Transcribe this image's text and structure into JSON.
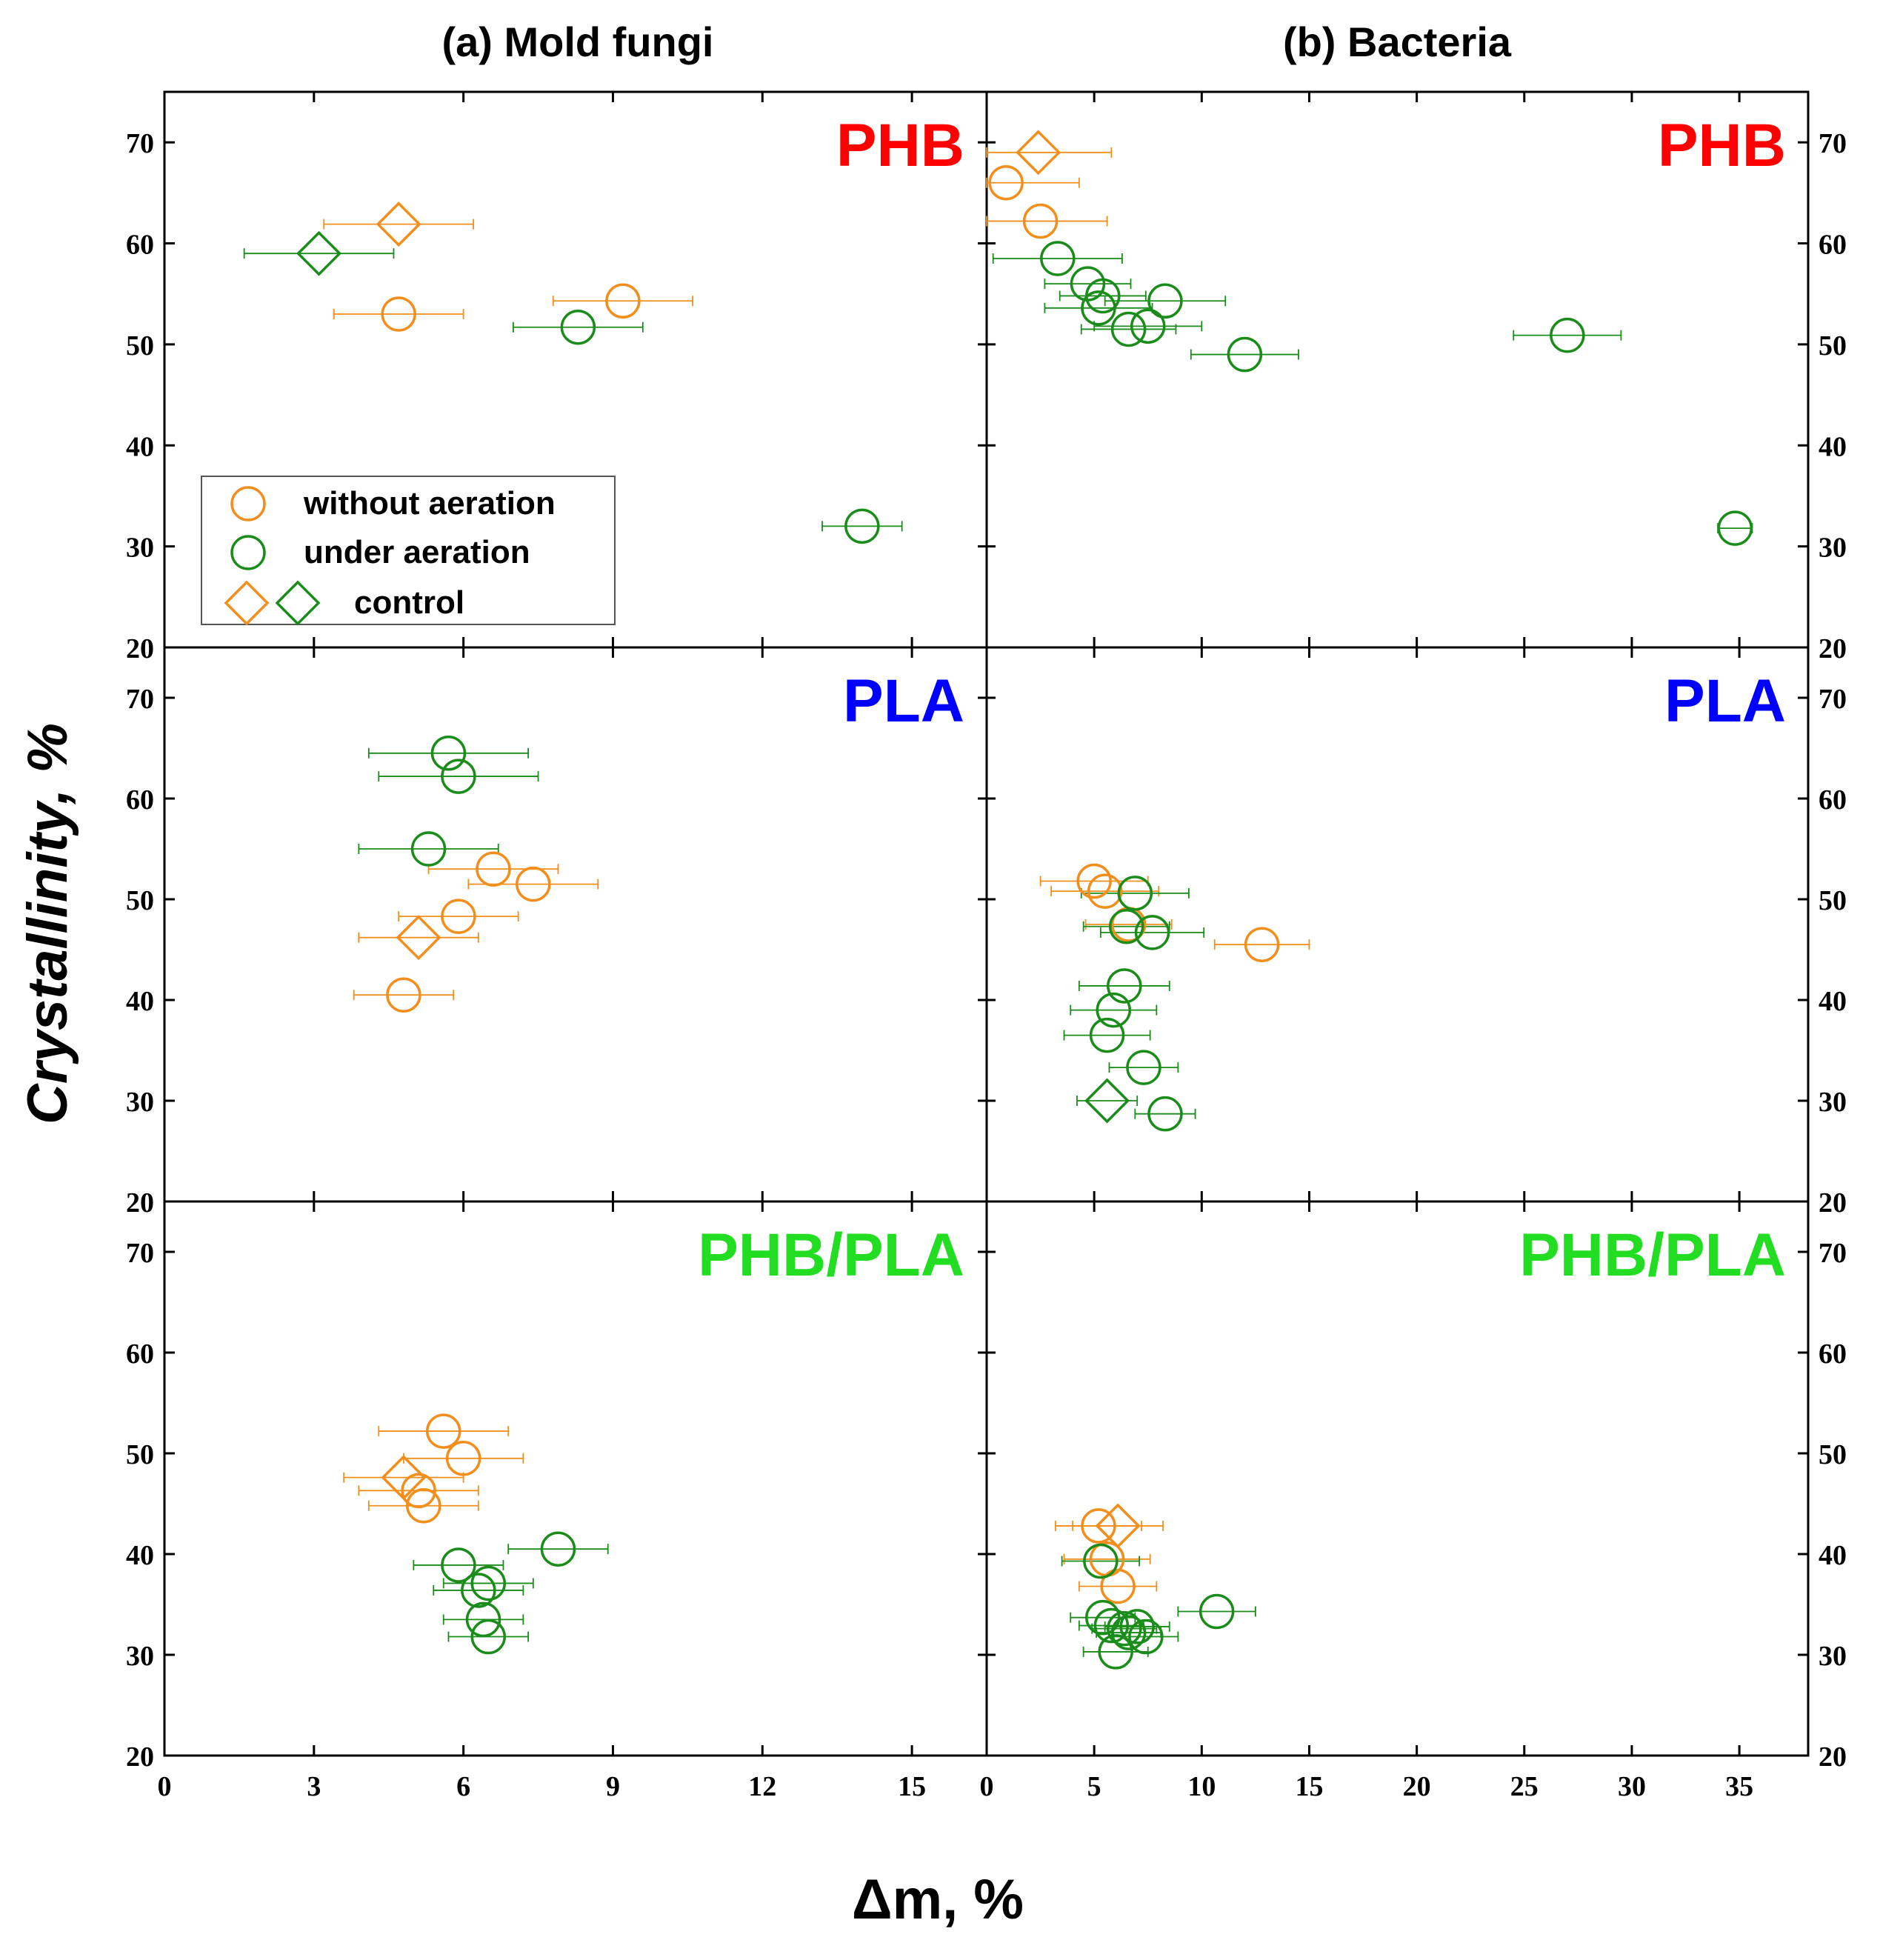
{
  "colors": {
    "without_aeration": "#f28e1c",
    "under_aeration": "#1a8c1a",
    "label_phb": "#ff0000",
    "label_pla": "#0000ff",
    "label_blend": "#22dd22",
    "axis": "#000000"
  },
  "chart_data": {
    "type": "scatter",
    "xlabel": "Δm, %",
    "ylabel": "Crystallinity, %",
    "column_titles": [
      "(a) Mold fungi",
      "(b) Bacteria"
    ],
    "row_labels": [
      "PHB",
      "PLA",
      "PHB/PLA"
    ],
    "ylim": [
      20,
      75
    ],
    "yticks": [
      20,
      30,
      40,
      50,
      60,
      70
    ],
    "columns": [
      {
        "xlim": [
          0,
          16.5
        ],
        "xticks": [
          0,
          3,
          6,
          9,
          12,
          15
        ]
      },
      {
        "xlim": [
          0,
          38.2
        ],
        "xticks": [
          0,
          5,
          10,
          15,
          20,
          25,
          30,
          35
        ]
      }
    ],
    "legend": {
      "location": "lower-left of top-left panel",
      "entries": [
        "without aeration",
        "under aeration",
        "control"
      ]
    },
    "panels": [
      {
        "column": "(a) Mold fungi",
        "material": "PHB",
        "without_aeration": [
          {
            "x": 4.7,
            "y": 53.0,
            "xerr": 1.3
          },
          {
            "x": 9.2,
            "y": 54.3,
            "xerr": 1.4
          }
        ],
        "under_aeration": [
          {
            "x": 8.3,
            "y": 51.7,
            "xerr": 1.3
          },
          {
            "x": 14.0,
            "y": 32.0,
            "xerr": 0.8
          }
        ],
        "control_without_aeration": [
          {
            "x": 4.7,
            "y": 61.9,
            "xerr": 1.5
          }
        ],
        "control_under_aeration": [
          {
            "x": 3.1,
            "y": 59.0,
            "xerr": 1.5
          }
        ]
      },
      {
        "column": "(b) Bacteria",
        "material": "PHB",
        "without_aeration": [
          {
            "x": 0.9,
            "y": 66.0,
            "xerr": 3.4
          },
          {
            "x": 2.5,
            "y": 62.2,
            "xerr": 3.1
          }
        ],
        "under_aeration": [
          {
            "x": 3.3,
            "y": 58.5,
            "xerr": 3.0
          },
          {
            "x": 4.7,
            "y": 56.0,
            "xerr": 2.0
          },
          {
            "x": 5.4,
            "y": 54.8,
            "xerr": 2.0
          },
          {
            "x": 5.2,
            "y": 53.6,
            "xerr": 2.5
          },
          {
            "x": 8.3,
            "y": 54.3,
            "xerr": 2.8
          },
          {
            "x": 7.5,
            "y": 51.8,
            "xerr": 2.5
          },
          {
            "x": 6.6,
            "y": 51.5,
            "xerr": 2.2
          },
          {
            "x": 12.0,
            "y": 49.0,
            "xerr": 2.5
          },
          {
            "x": 27.0,
            "y": 50.9,
            "xerr": 2.5
          },
          {
            "x": 34.8,
            "y": 31.8,
            "xerr": 0.8
          }
        ],
        "control_without_aeration": [
          {
            "x": 2.4,
            "y": 69.0,
            "xerr": 3.4
          }
        ],
        "control_under_aeration": []
      },
      {
        "column": "(a) Mold fungi",
        "material": "PLA",
        "without_aeration": [
          {
            "x": 6.6,
            "y": 53.0,
            "xerr": 1.3
          },
          {
            "x": 7.4,
            "y": 51.5,
            "xerr": 1.3
          },
          {
            "x": 5.9,
            "y": 48.3,
            "xerr": 1.2
          },
          {
            "x": 4.8,
            "y": 40.5,
            "xerr": 1.0
          }
        ],
        "under_aeration": [
          {
            "x": 5.7,
            "y": 64.5,
            "xerr": 1.6
          },
          {
            "x": 5.9,
            "y": 62.2,
            "xerr": 1.6
          },
          {
            "x": 5.3,
            "y": 55.0,
            "xerr": 1.4
          }
        ],
        "control_without_aeration": [
          {
            "x": 5.1,
            "y": 46.2,
            "xerr": 1.2
          }
        ],
        "control_under_aeration": []
      },
      {
        "column": "(b) Bacteria",
        "material": "PLA",
        "without_aeration": [
          {
            "x": 5.0,
            "y": 51.8,
            "xerr": 2.5
          },
          {
            "x": 5.5,
            "y": 50.8,
            "xerr": 2.5
          },
          {
            "x": 6.6,
            "y": 47.5,
            "xerr": 2.0
          },
          {
            "x": 12.8,
            "y": 45.5,
            "xerr": 2.2
          }
        ],
        "under_aeration": [
          {
            "x": 6.9,
            "y": 50.6,
            "xerr": 2.5
          },
          {
            "x": 6.5,
            "y": 47.3,
            "xerr": 2.0
          },
          {
            "x": 7.7,
            "y": 46.7,
            "xerr": 2.4
          },
          {
            "x": 6.4,
            "y": 41.4,
            "xerr": 2.1
          },
          {
            "x": 5.9,
            "y": 39.0,
            "xerr": 2.0
          },
          {
            "x": 5.6,
            "y": 36.5,
            "xerr": 2.0
          },
          {
            "x": 7.3,
            "y": 33.3,
            "xerr": 1.6
          },
          {
            "x": 8.3,
            "y": 28.7,
            "xerr": 1.4
          }
        ],
        "control_without_aeration": [],
        "control_under_aeration": [
          {
            "x": 5.6,
            "y": 30.0,
            "xerr": 1.4
          }
        ]
      },
      {
        "column": "(a) Mold fungi",
        "material": "PHB/PLA",
        "without_aeration": [
          {
            "x": 5.6,
            "y": 52.2,
            "xerr": 1.3
          },
          {
            "x": 6.0,
            "y": 49.5,
            "xerr": 1.2
          },
          {
            "x": 5.1,
            "y": 46.3,
            "xerr": 1.2
          },
          {
            "x": 5.2,
            "y": 44.8,
            "xerr": 1.1
          }
        ],
        "under_aeration": [
          {
            "x": 7.9,
            "y": 40.5,
            "xerr": 1.0
          },
          {
            "x": 5.9,
            "y": 38.9,
            "xerr": 0.9
          },
          {
            "x": 6.5,
            "y": 37.1,
            "xerr": 0.9
          },
          {
            "x": 6.3,
            "y": 36.4,
            "xerr": 0.9
          },
          {
            "x": 6.4,
            "y": 33.5,
            "xerr": 0.8
          },
          {
            "x": 6.5,
            "y": 31.8,
            "xerr": 0.8
          }
        ],
        "control_without_aeration": [
          {
            "x": 4.8,
            "y": 47.6,
            "xerr": 1.2
          }
        ],
        "control_under_aeration": []
      },
      {
        "column": "(b) Bacteria",
        "material": "PHB/PLA",
        "without_aeration": [
          {
            "x": 5.2,
            "y": 42.8,
            "xerr": 2.0
          },
          {
            "x": 5.6,
            "y": 39.5,
            "xerr": 2.0
          },
          {
            "x": 6.1,
            "y": 36.8,
            "xerr": 1.8
          }
        ],
        "under_aeration": [
          {
            "x": 5.3,
            "y": 39.3,
            "xerr": 1.8
          },
          {
            "x": 10.7,
            "y": 34.3,
            "xerr": 1.8
          },
          {
            "x": 5.4,
            "y": 33.7,
            "xerr": 1.5
          },
          {
            "x": 5.8,
            "y": 32.9,
            "xerr": 1.5
          },
          {
            "x": 6.4,
            "y": 32.6,
            "xerr": 1.5
          },
          {
            "x": 7.0,
            "y": 32.8,
            "xerr": 1.5
          },
          {
            "x": 7.4,
            "y": 31.8,
            "xerr": 1.5
          },
          {
            "x": 6.6,
            "y": 32.2,
            "xerr": 1.5
          },
          {
            "x": 6.0,
            "y": 30.3,
            "xerr": 1.5
          }
        ],
        "control_without_aeration": [
          {
            "x": 6.1,
            "y": 42.8,
            "xerr": 2.1
          }
        ],
        "control_under_aeration": []
      }
    ]
  }
}
